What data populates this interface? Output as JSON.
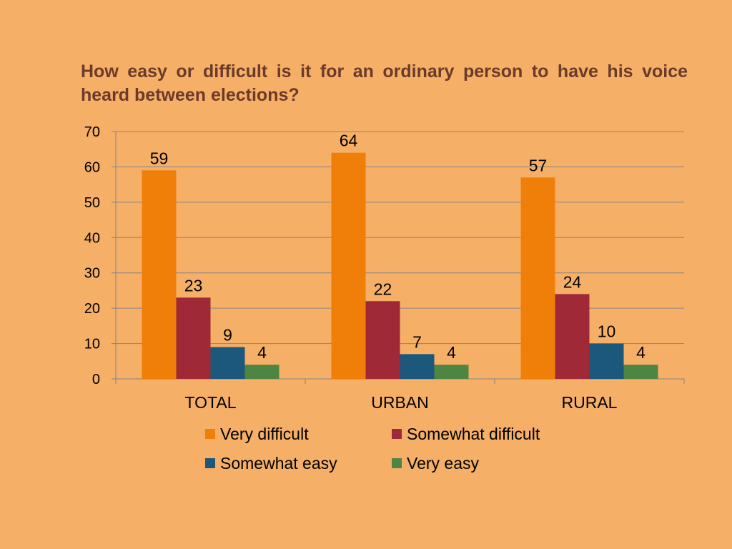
{
  "chart_data": {
    "type": "bar",
    "title": "How easy or difficult is it for an ordinary person to have his voice heard between elections?",
    "categories": [
      "TOTAL",
      "URBAN",
      "RURAL"
    ],
    "series": [
      {
        "name": "Very difficult",
        "values": [
          59,
          64,
          57
        ],
        "color": "#F07F09"
      },
      {
        "name": "Somewhat difficult",
        "values": [
          23,
          22,
          24
        ],
        "color": "#9F2936"
      },
      {
        "name": "Somewhat easy",
        "values": [
          9,
          7,
          10
        ],
        "color": "#1B587C"
      },
      {
        "name": "Very easy",
        "values": [
          4,
          4,
          4
        ],
        "color": "#4E8542"
      }
    ],
    "ylim": [
      0,
      70
    ],
    "yticks": [
      0,
      10,
      20,
      30,
      40,
      50,
      60,
      70
    ],
    "grid": true,
    "legend": "bottom",
    "xlabel": "",
    "ylabel": ""
  },
  "colors": {
    "background": "#F6AF67",
    "title": "#6B3B2A",
    "gridline": "#868686"
  }
}
